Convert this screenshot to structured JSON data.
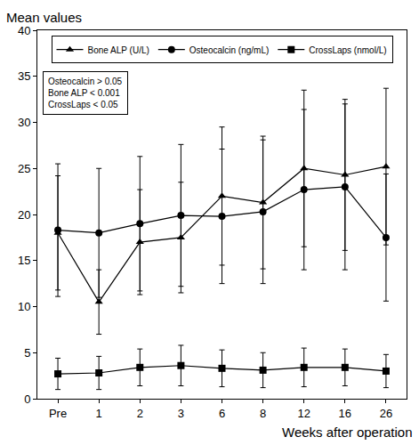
{
  "chart_data": {
    "type": "line",
    "x_label": "Weeks after operation",
    "y_label": "Mean values",
    "categories": [
      "Pre",
      "1",
      "2",
      "3",
      "6",
      "8",
      "12",
      "16",
      "26"
    ],
    "series": [
      {
        "name": "Bone ALP (U/L)",
        "color": "#000000",
        "marker": "triangle",
        "values": [
          18,
          10.5,
          17,
          17.5,
          22,
          21.3,
          25,
          24.3,
          25.2
        ],
        "error": [
          6.2,
          3.5,
          5.7,
          6,
          7.5,
          7.2,
          8.5,
          8.2,
          8.5
        ]
      },
      {
        "name": "Osteocalcin (ng/mL)",
        "color": "#000000",
        "marker": "circle",
        "values": [
          18.3,
          18,
          19,
          19.9,
          19.8,
          20.3,
          22.7,
          23,
          17.5
        ],
        "error": [
          7.2,
          7,
          7.3,
          7.7,
          7.3,
          7.8,
          8.7,
          9,
          6.9
        ]
      },
      {
        "name": "CrossLaps (nmol/L)",
        "color": "#000000",
        "marker": "square",
        "values": [
          2.7,
          2.8,
          3.4,
          3.6,
          3.3,
          3.1,
          3.4,
          3.4,
          3.0
        ],
        "error": [
          1.7,
          1.8,
          2.0,
          2.2,
          2.0,
          1.9,
          2.1,
          2.0,
          1.8
        ]
      }
    ],
    "annotations": [
      "Osteocalcin > 0.05",
      "Bone ALP < 0.001",
      "CrossLaps < 0.05"
    ],
    "ylim": [
      0,
      40
    ],
    "yticks": [
      0,
      5,
      10,
      15,
      20,
      25,
      30,
      35,
      40
    ],
    "legend": "top",
    "grid": false
  }
}
